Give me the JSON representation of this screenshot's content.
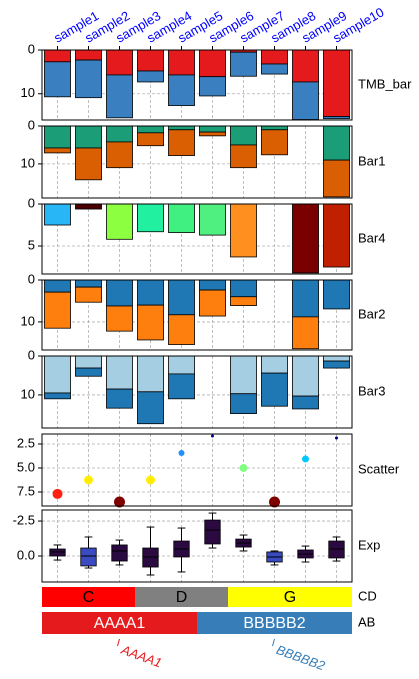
{
  "chart_data": {
    "type": "oncoprint",
    "categories": [
      "sample1",
      "sample2",
      "sample3",
      "sample4",
      "sample5",
      "sample6",
      "sample7",
      "sample8",
      "sample9",
      "sample10"
    ],
    "xtick_color": "#0000ff",
    "grid": true,
    "panels": [
      {
        "type": "bar",
        "label": "TMB_bar",
        "ylim": [
          0,
          16
        ],
        "yticks": [
          0,
          10
        ],
        "inverted": true,
        "series": [
          {
            "color": "#e41a1c",
            "values": [
              2.7,
              2.3,
              5.7,
              4.8,
              5.7,
              6.1,
              0.5,
              3.2,
              7.3,
              15.2
            ]
          },
          {
            "color": "#3a80c0",
            "values": [
              8,
              8.6,
              9.8,
              2.5,
              7,
              4.4,
              5.5,
              2.3,
              8.6,
              0.5
            ]
          }
        ]
      },
      {
        "type": "bar",
        "label": "Bar1",
        "ylim": [
          0,
          19
        ],
        "yticks": [
          0,
          10
        ],
        "inverted": true,
        "series": [
          {
            "color": "#1b9e77",
            "values": [
              5.8,
              5.8,
              4.2,
              1.8,
              1,
              1.6,
              5,
              1,
              null,
              9
            ]
          },
          {
            "color": "#d95f02",
            "values": [
              1.3,
              8.4,
              6.8,
              3.4,
              6.8,
              1,
              6,
              6.6,
              null,
              9.7
            ]
          }
        ]
      },
      {
        "type": "bar",
        "label": "Bar4",
        "ylim": [
          0,
          8.33
        ],
        "yticks": [
          0,
          5
        ],
        "inverted": true,
        "series": [
          {
            "colors": [
              "#29b6f6",
              "#4a0000",
              "#8cff40",
              "#20f0a0",
              "#40f080",
              "#50f080",
              "#ff9020",
              null,
              "#7a0000",
              "#c02000"
            ],
            "values": [
              2.5,
              0.6,
              4.2,
              3.3,
              3.4,
              3.7,
              6.3,
              null,
              8.2,
              7.5
            ]
          }
        ]
      },
      {
        "type": "bar",
        "label": "Bar2",
        "ylim": [
          0,
          16.7
        ],
        "yticks": [
          0,
          10
        ],
        "inverted": true,
        "series": [
          {
            "color": "#1f77b4",
            "values": [
              2.9,
              1.7,
              6.2,
              6,
              8.3,
              2.4,
              4,
              null,
              8.8,
              6.9
            ]
          },
          {
            "color": "#ff7f0e",
            "values": [
              8.6,
              3.6,
              6,
              8.3,
              7.1,
              6.2,
              2.1,
              null,
              7.6,
              null
            ]
          }
        ]
      },
      {
        "type": "bar",
        "label": "Bar3",
        "ylim": [
          0,
          18.5
        ],
        "yticks": [
          0,
          10
        ],
        "inverted": true,
        "series": [
          {
            "color": "#a6cee3",
            "values": [
              9.5,
              3.1,
              8.5,
              9.2,
              4.6,
              null,
              9.7,
              4.4,
              10.3,
              1.3
            ]
          },
          {
            "color": "#1f78b4",
            "values": [
              1.5,
              2.1,
              4.9,
              8.2,
              6.4,
              null,
              5.1,
              8.5,
              3.3,
              1.8
            ]
          }
        ]
      },
      {
        "type": "scatter",
        "label": "Scatter",
        "ylim": [
          1.46,
          8.96
        ],
        "yticks": [
          2.5,
          {
            "value": 5,
            "label": "5.0"
          },
          7.5
        ],
        "inverted": true,
        "values": [
          7.7,
          6.25,
          8.54,
          6.25,
          3.44,
          1.67,
          5.0,
          8.54,
          4.06,
          1.88
        ],
        "sizes": [
          5,
          4.5,
          5.5,
          4.5,
          3,
          1.5,
          4,
          5.5,
          3.5,
          1.5
        ],
        "colors": [
          "#ff2010",
          "#ffee00",
          "#800000",
          "#ffee00",
          "#1e90ff",
          "#000080",
          "#80ff80",
          "#800000",
          "#00c8ff",
          "#000080"
        ]
      },
      {
        "type": "box",
        "label": "Exp",
        "ylim": [
          -3.29,
          1.86
        ],
        "yticks": [
          -2.5,
          {
            "value": 0,
            "label": "0.0"
          }
        ],
        "inverted": true,
        "q1": [
          -0.5,
          -0.57,
          -0.79,
          -0.57,
          -1.07,
          -2.57,
          -1.21,
          -0.29,
          -0.43,
          -1.07
        ],
        "median": [
          -0.29,
          0,
          -0.36,
          0.07,
          -0.5,
          -1.86,
          -0.93,
          0.07,
          -0.14,
          -0.5
        ],
        "q3": [
          0,
          0.71,
          0.36,
          0.79,
          0.07,
          -0.86,
          -0.64,
          0.43,
          0.14,
          0.14
        ],
        "whislo": [
          -0.79,
          -1.36,
          -1.14,
          -2.07,
          -2.0,
          -3.07,
          -1.5,
          -0.36,
          -0.71,
          -1.36
        ],
        "whishi": [
          0.29,
          0.86,
          0.64,
          1.36,
          1.14,
          -0.57,
          -0.36,
          0.64,
          0.43,
          0.36
        ],
        "colors": [
          "#2a0a40",
          "#3a4ac0",
          "#2a0a40",
          "#2a0a40",
          "#2a0a40",
          "#2a0a40",
          "#2a0a40",
          "#3a4ac0",
          "#2a0a40",
          "#2a0a40"
        ]
      },
      {
        "type": "annotation",
        "label": "CD",
        "text_color": "#000000",
        "values": [
          "C",
          "C",
          "C",
          "D",
          "D",
          "D",
          "G",
          "G",
          "G",
          "G"
        ],
        "colors": {
          "C": "#ff0000",
          "D": "#808080",
          "G": "#ffff00"
        }
      },
      {
        "type": "annotation",
        "label": "AB",
        "text_color": "#ffffff",
        "legend_below": true,
        "values": [
          "AAAA1",
          "AAAA1",
          "AAAA1",
          "AAAA1",
          "AAAA1",
          "BBBBB2",
          "BBBBB2",
          "BBBBB2",
          "BBBBB2",
          "BBBBB2"
        ],
        "colors": {
          "AAAA1": "#e41a1c",
          "BBBBB2": "#377eb8"
        }
      }
    ]
  }
}
